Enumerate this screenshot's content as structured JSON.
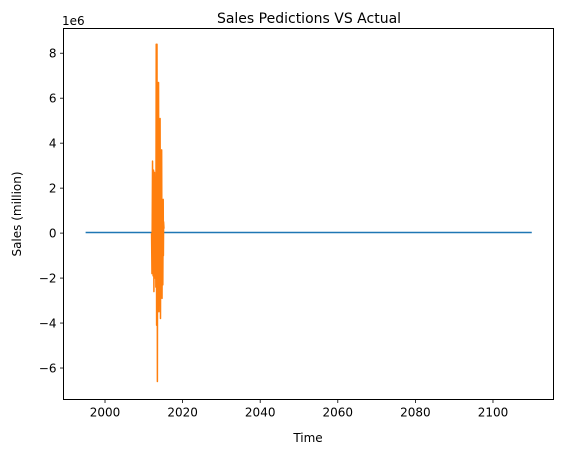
{
  "chart_data": {
    "type": "line",
    "title": "Sales Pedictions VS Actual",
    "xlabel": "Time",
    "ylabel": "Sales (million)",
    "y_offset_text": "1e6",
    "xlim": [
      1989.3,
      2115.6
    ],
    "ylim": [
      -7.4,
      9.1
    ],
    "y_scale_exponent": 6,
    "x_ticks": [
      2000,
      2020,
      2040,
      2060,
      2080,
      2100
    ],
    "y_ticks": [
      -6,
      -4,
      -2,
      0,
      2,
      4,
      6,
      8
    ],
    "grid": false,
    "series": [
      {
        "color": "#1f77b4",
        "x": [
          1995.0,
          2000,
          2020,
          2040,
          2060,
          2080,
          2100,
          2110.0
        ],
        "y": [
          0.03,
          0.03,
          0.03,
          0.03,
          0.03,
          0.03,
          0.03,
          0.03
        ]
      },
      {
        "color": "#ff7f0e",
        "x": [
          2012.0,
          2012.1,
          2012.25,
          2012.4,
          2012.5,
          2012.6,
          2012.75,
          2012.9,
          2013.0,
          2013.1,
          2013.2,
          2013.3,
          2013.4,
          2013.5,
          2013.6,
          2013.7,
          2013.8,
          2013.9,
          2014.0,
          2014.1,
          2014.2,
          2014.3,
          2014.4,
          2014.5,
          2014.6,
          2014.7,
          2014.8,
          2014.9,
          2015.0,
          2015.05,
          2015.1,
          2015.2
        ],
        "y": [
          0.0,
          -1.8,
          3.2,
          -1.9,
          2.8,
          -2.6,
          2.7,
          -2.0,
          1.5,
          -2.4,
          8.4,
          -4.1,
          8.4,
          -6.6,
          6.7,
          -2.8,
          6.7,
          -3.5,
          4.0,
          -2.6,
          5.1,
          -3.8,
          2.3,
          -2.8,
          3.7,
          -2.9,
          1.4,
          -2.3,
          1.5,
          -1.0,
          0.5,
          0.2
        ]
      }
    ]
  }
}
